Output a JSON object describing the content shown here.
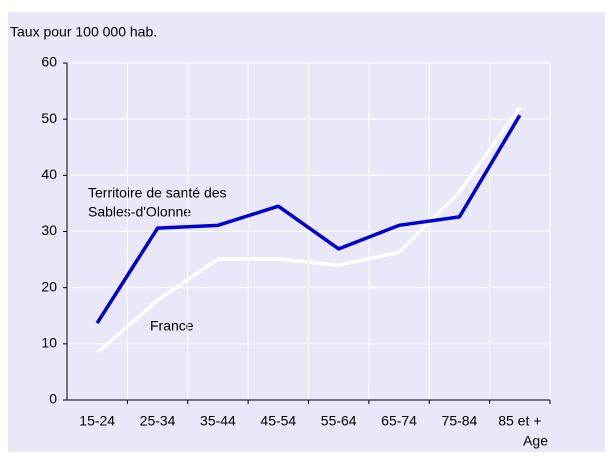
{
  "chart_data": {
    "type": "line",
    "ylabel": "Taux pour 100 000 hab.",
    "xlabel": "Age",
    "categories": [
      "15-24",
      "25-34",
      "35-44",
      "45-54",
      "55-64",
      "65-74",
      "75-84",
      "85 et +"
    ],
    "series": [
      {
        "name": "Territoire de santé des Sables-d'Olonne",
        "color": "#0000cc",
        "values": [
          13.7,
          30.6,
          31.1,
          34.5,
          26.9,
          31.1,
          32.6,
          50.7
        ]
      },
      {
        "name": "France",
        "color": "#ffffff",
        "values": [
          8.4,
          17.8,
          25.1,
          25.1,
          24.0,
          26.3,
          37.0,
          52.1
        ]
      }
    ],
    "annotations": [
      "Territoire de santé des",
      "Sables-d'Olonne",
      "France"
    ],
    "ylim": [
      0,
      60
    ],
    "yticks": [
      0,
      10,
      20,
      30,
      40,
      50,
      60
    ],
    "grid": true
  }
}
